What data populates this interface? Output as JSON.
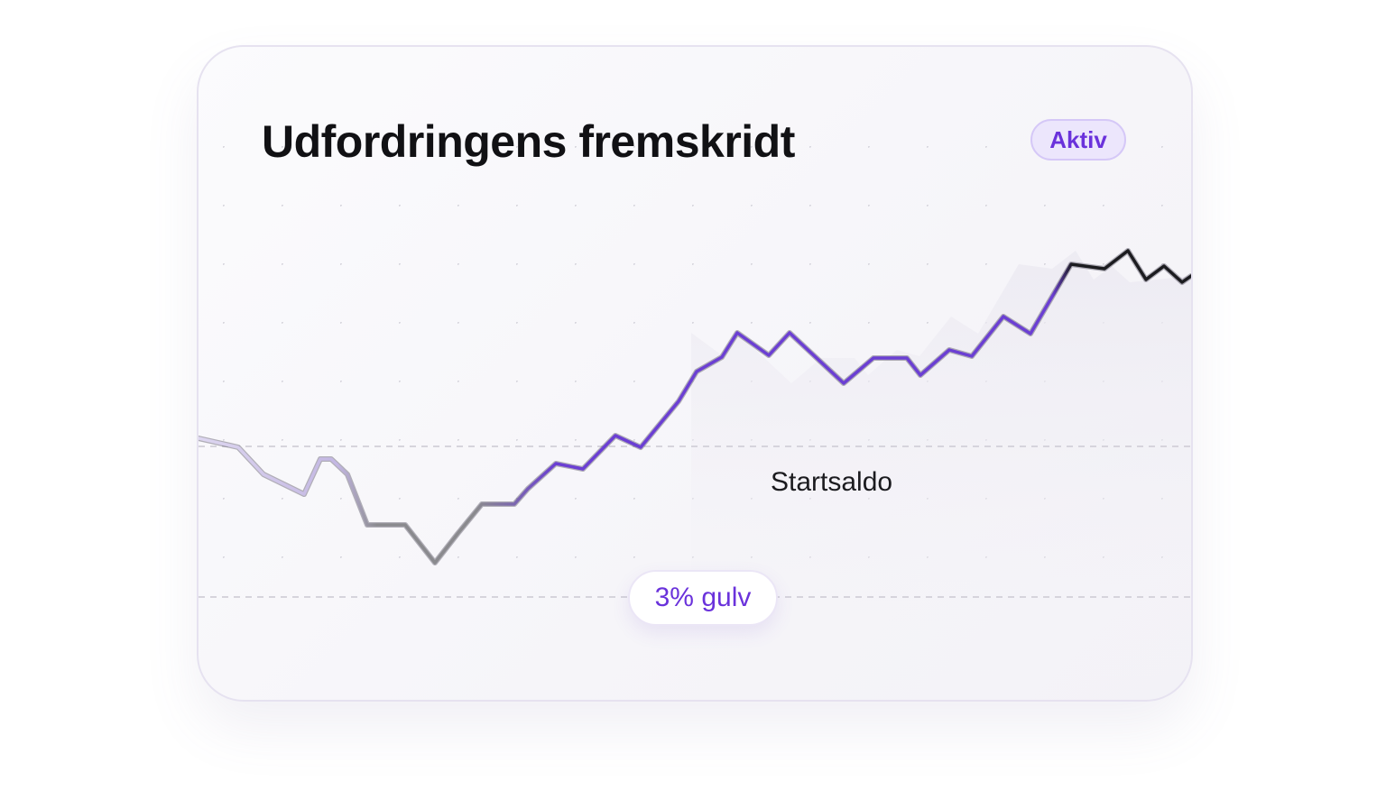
{
  "card": {
    "title": "Udfordringens fremskridt",
    "badge": "Aktiv",
    "baseline_label": "Startsaldo",
    "floor_label": "3% gulv"
  }
}
